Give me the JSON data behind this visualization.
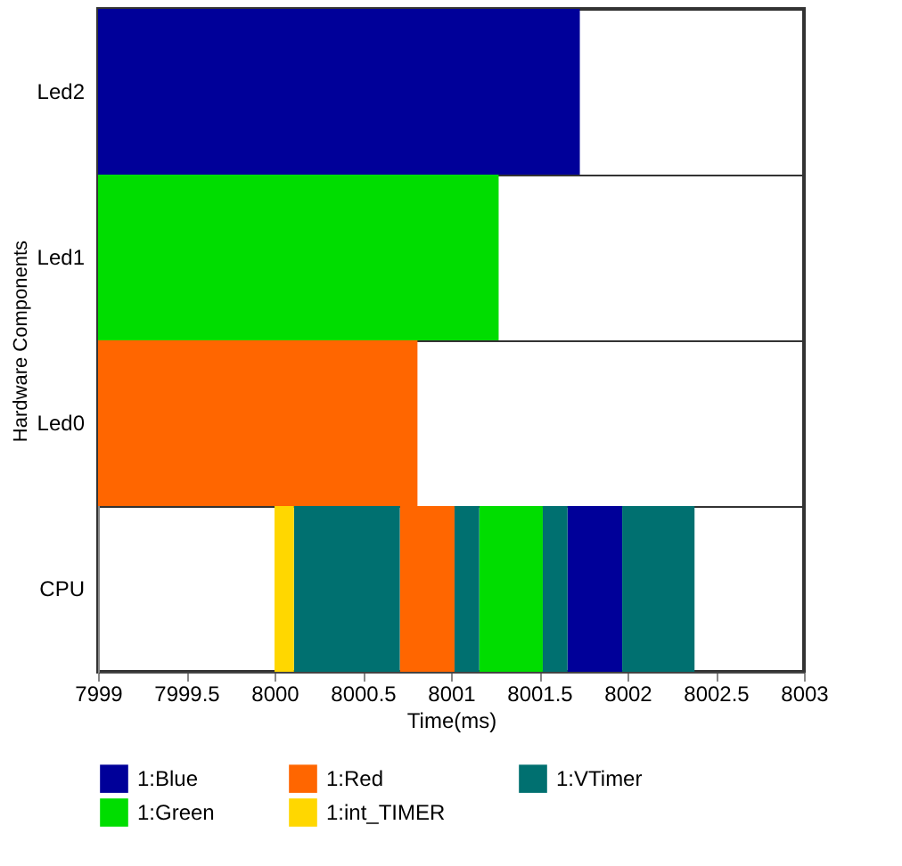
{
  "chart_data": {
    "type": "bar",
    "orientation": "horizontal",
    "xlabel": "Time(ms)",
    "ylabel": "Hardware Components",
    "categories": [
      "Led2",
      "Led1",
      "Led0",
      "CPU"
    ],
    "series": [
      {
        "name": "1:Blue",
        "color": "#000099",
        "values": [
          2.73,
          null,
          null,
          0.31
        ],
        "base": [
          7999,
          null,
          null,
          8001.66
        ]
      },
      {
        "name": "1:Red",
        "color": "#ff6600",
        "values": [
          null,
          null,
          1.81,
          0.31
        ],
        "base": [
          null,
          null,
          7999,
          8000.71
        ]
      },
      {
        "name": "1:VTimer",
        "color": "#007070",
        "values": [
          null,
          null,
          null,
          0.6
        ],
        "base": [
          null,
          null,
          null,
          8000.11
        ]
      },
      {
        "name": "1:Green",
        "color": "#00dd00",
        "values": [
          null,
          2.27,
          null,
          0.36
        ],
        "base": [
          null,
          7999,
          null,
          8001.16
        ]
      },
      {
        "name": "1:int_TIMER",
        "color": "#ffd700",
        "values": [
          null,
          null,
          null,
          0.11
        ],
        "base": [
          null,
          null,
          null,
          8000.0
        ]
      },
      {
        "color": "#007070",
        "values": [
          null,
          null,
          null,
          0.14
        ],
        "base": [
          null,
          null,
          null,
          8001.02
        ]
      },
      {
        "color": "#007070",
        "values": [
          null,
          null,
          null,
          0.14
        ],
        "base": [
          null,
          null,
          null,
          8001.52
        ]
      },
      {
        "color": "#007070",
        "values": [
          null,
          null,
          null,
          0.41
        ],
        "base": [
          null,
          null,
          null,
          8001.97
        ]
      }
    ],
    "xlim": [
      7999,
      8003
    ],
    "xticks": [
      7999,
      7999.5,
      8000,
      8000.5,
      8001,
      8001.5,
      8002,
      8002.5,
      8003
    ],
    "grid": "y",
    "legend": "bottom"
  }
}
